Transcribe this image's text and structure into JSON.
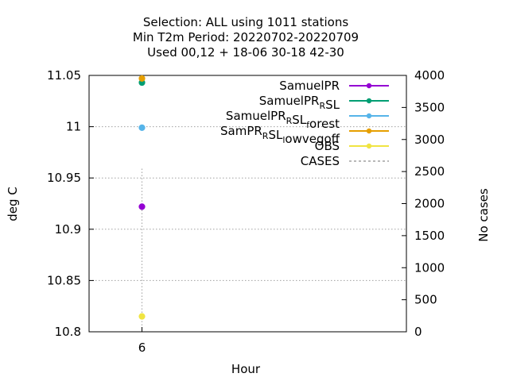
{
  "chart_data": {
    "type": "scatter",
    "title_lines": [
      "Selection: ALL using  1011 stations",
      "Min T2m   Period: 20220702-20220709",
      "Used  00,12  + 18-06 30-18 42-30"
    ],
    "xlabel": "Hour",
    "ylabel": "deg C",
    "y2label": "No cases",
    "x_ticks": [
      6
    ],
    "y_ticks": [
      "10.8",
      "10.85",
      "10.9",
      "10.95",
      "11",
      "11.05"
    ],
    "y2_ticks": [
      "0",
      "500",
      "1000",
      "1500",
      "2000",
      "2500",
      "3000",
      "3500",
      "4000"
    ],
    "xlim": [
      5,
      11
    ],
    "ylim": [
      10.8,
      11.05
    ],
    "y2lim": [
      0,
      4000
    ],
    "grid": true,
    "legend_position": "top-right",
    "series": [
      {
        "name": "SamuelPR",
        "label_parts": [
          [
            "SamuelPR",
            "n"
          ]
        ],
        "color": "#9400d3",
        "x": [
          6
        ],
        "values": [
          10.922
        ]
      },
      {
        "name": "SamuelPR_RSL",
        "label_parts": [
          [
            "SamuelPR",
            "n"
          ],
          [
            "R",
            "sub"
          ],
          [
            "SL",
            "n"
          ]
        ],
        "color": "#009e73",
        "x": [
          6
        ],
        "values": [
          11.043
        ]
      },
      {
        "name": "SamuelPR_RSL_forest",
        "label_parts": [
          [
            "SamuelPR",
            "n"
          ],
          [
            "R",
            "sub"
          ],
          [
            "SL",
            "n"
          ],
          [
            "f",
            "sub"
          ],
          [
            "orest",
            "n"
          ]
        ],
        "color": "#56b4e9",
        "x": [
          6
        ],
        "values": [
          10.999
        ]
      },
      {
        "name": "SamPR_RSL_lowvegoff",
        "label_parts": [
          [
            "SamPR",
            "n"
          ],
          [
            "R",
            "sub"
          ],
          [
            "SL",
            "n"
          ],
          [
            "l",
            "sub"
          ],
          [
            "owvegoff",
            "n"
          ]
        ],
        "color": "#e69f00",
        "x": [
          6
        ],
        "values": [
          11.047
        ]
      },
      {
        "name": "OBS",
        "label_parts": [
          [
            "OBS",
            "n"
          ]
        ],
        "color": "#f0e442",
        "x": [
          6
        ],
        "values": [
          10.815
        ]
      }
    ],
    "cases": {
      "name": "CASES",
      "color": "#a0a0a0",
      "x": [
        6
      ],
      "values": [
        2550
      ]
    }
  }
}
